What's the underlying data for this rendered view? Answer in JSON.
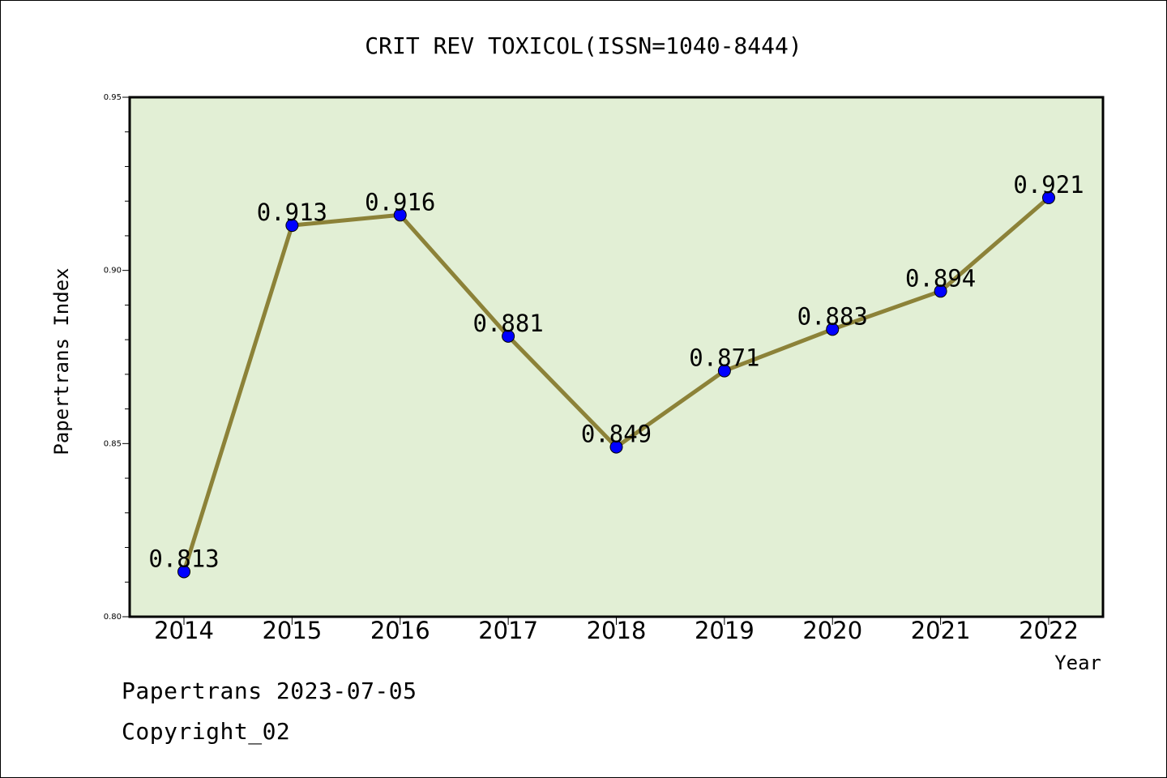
{
  "chart_data": {
    "type": "line",
    "title": "CRIT REV TOXICOL(ISSN=1040-8444)",
    "xlabel": "Year",
    "ylabel": "Papertrans Index",
    "x": [
      "2014",
      "2015",
      "2016",
      "2017",
      "2018",
      "2019",
      "2020",
      "2021",
      "2022"
    ],
    "series": [
      {
        "values": [
          0.813,
          0.913,
          0.916,
          0.881,
          0.849,
          0.871,
          0.883,
          0.894,
          0.921
        ]
      }
    ],
    "data_labels": [
      "0.813",
      "0.913",
      "0.916",
      "0.881",
      "0.849",
      "0.871",
      "0.883",
      "0.894",
      "0.921"
    ],
    "ylim": [
      0.8,
      0.95
    ],
    "yticks": [
      "0.80",
      "0.85",
      "0.90",
      "0.95"
    ],
    "grid": false,
    "colors": {
      "plot_background": "#e2efd5",
      "line": "#8c8238",
      "marker": "#0000ff"
    }
  },
  "footer": {
    "line1": "Papertrans 2023-07-05",
    "line2": "Copyright_02"
  }
}
